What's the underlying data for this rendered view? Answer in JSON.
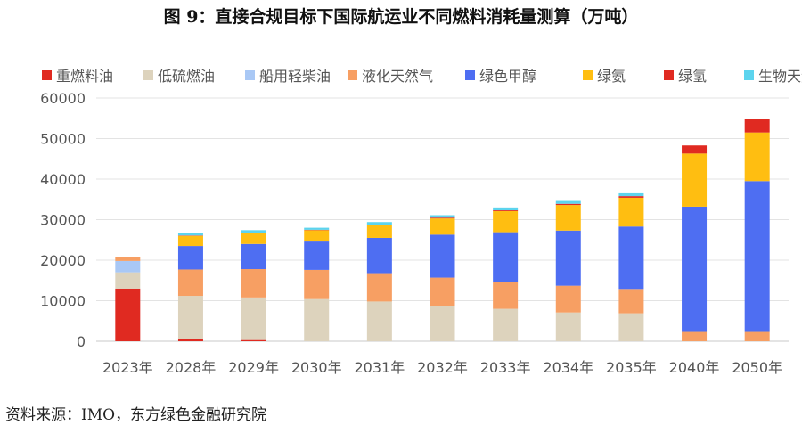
{
  "title": "图 9：直接合规目标下国际航运业不同燃料消耗量测算（万吨）",
  "source": "资料来源：IMO，东方绿色金融研究院",
  "colors": {
    "重燃料油": "#E02A21",
    "低硫燃油": "#DDD3BD",
    "船用轻柴油": "#A9C8F5",
    "液化天然气": "#F79F63",
    "绿色甲醇": "#4E6EF2",
    "绿氨": "#FFBE11",
    "绿氢": "#E02A21",
    "生物天然气": "#5CD4EE"
  },
  "chart_data": {
    "type": "bar",
    "stacked": true,
    "title": "图 9：直接合规目标下国际航运业不同燃料消耗量测算（万吨）",
    "xlabel": "",
    "ylabel": "",
    "ylim": [
      0,
      60000
    ],
    "yticks": [
      0,
      10000,
      20000,
      30000,
      40000,
      50000,
      60000
    ],
    "grid": true,
    "legend_position": "top",
    "categories": [
      "2023年",
      "2028年",
      "2029年",
      "2030年",
      "2031年",
      "2032年",
      "2033年",
      "2034年",
      "2035年",
      "2040年",
      "2050年"
    ],
    "series": [
      {
        "name": "重燃料油",
        "values": [
          13000,
          500,
          300,
          0,
          0,
          0,
          0,
          0,
          0,
          0,
          0
        ]
      },
      {
        "name": "低硫燃油",
        "values": [
          4000,
          10700,
          10500,
          10400,
          9800,
          8600,
          8000,
          7100,
          6900,
          0,
          0
        ]
      },
      {
        "name": "船用轻柴油",
        "values": [
          2800,
          0,
          0,
          0,
          0,
          0,
          0,
          0,
          0,
          0,
          0
        ]
      },
      {
        "name": "液化天然气",
        "values": [
          1000,
          6500,
          7000,
          7200,
          7000,
          7100,
          6700,
          6600,
          6000,
          2300,
          2300
        ]
      },
      {
        "name": "绿色甲醇",
        "values": [
          0,
          5800,
          6200,
          7000,
          8700,
          10600,
          12200,
          13600,
          15400,
          30900,
          37200
        ]
      },
      {
        "name": "绿氨",
        "values": [
          0,
          2500,
          2700,
          2800,
          3100,
          4000,
          5200,
          6300,
          7100,
          13100,
          12000
        ]
      },
      {
        "name": "绿氢",
        "values": [
          0,
          100,
          100,
          100,
          100,
          200,
          200,
          300,
          400,
          2000,
          3400
        ]
      },
      {
        "name": "生物天然气",
        "values": [
          0,
          600,
          600,
          500,
          700,
          600,
          700,
          700,
          700,
          0,
          0
        ]
      }
    ]
  }
}
